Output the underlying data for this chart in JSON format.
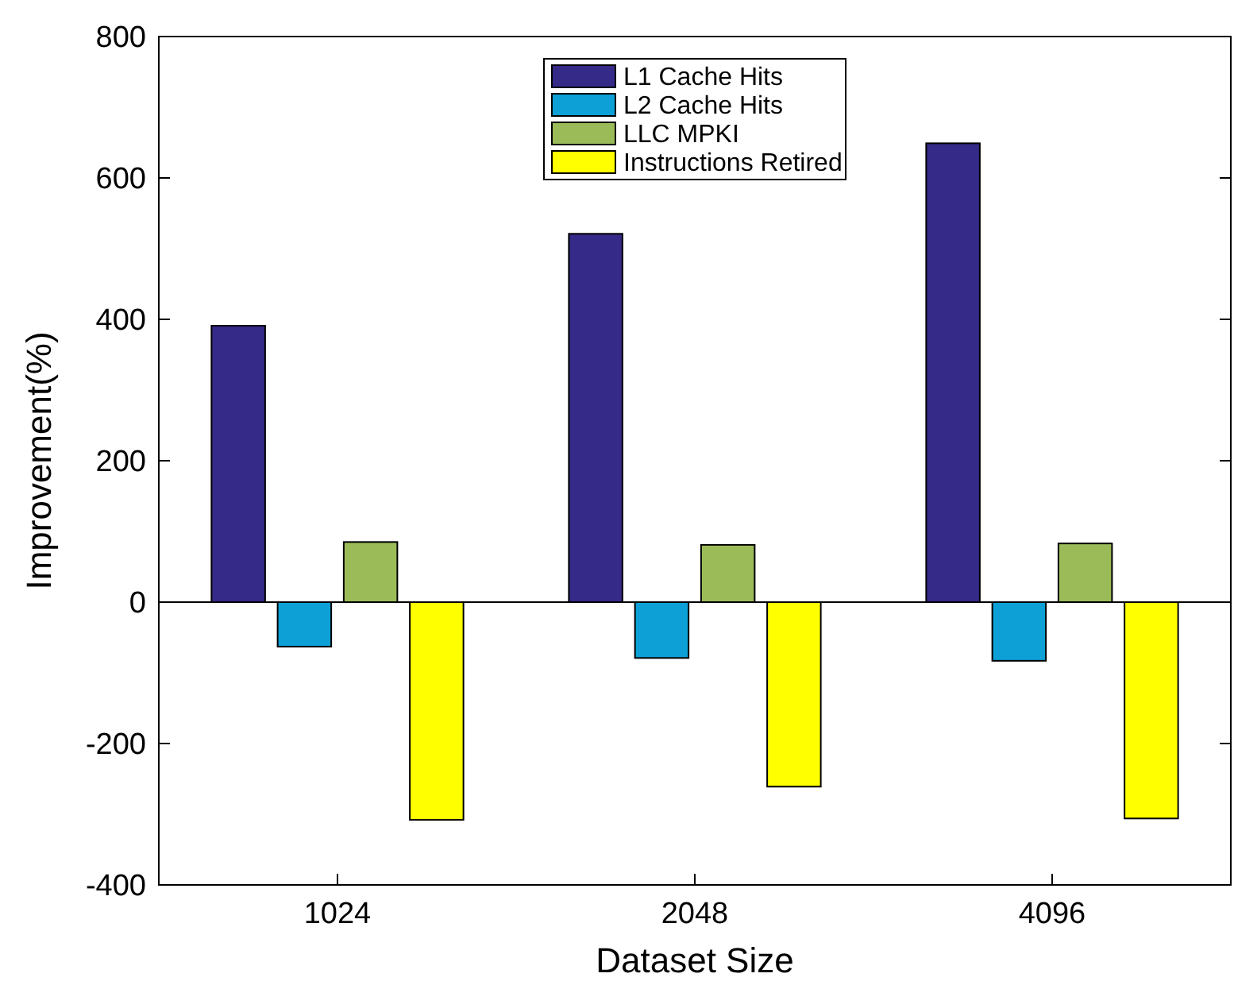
{
  "chart_data": {
    "type": "bar",
    "xlabel": "Dataset Size",
    "ylabel": "Improvement(%)",
    "categories": [
      "1024",
      "2048",
      "4096"
    ],
    "series": [
      {
        "name": "L1 Cache Hits",
        "color": "#352a87",
        "values": [
          391,
          521,
          649
        ]
      },
      {
        "name": "L2 Cache Hits",
        "color": "#0ca0d6",
        "values": [
          -63,
          -79,
          -83
        ]
      },
      {
        "name": "LLC MPKI",
        "color": "#9bbb59",
        "values": [
          85,
          81,
          83
        ]
      },
      {
        "name": "Instructions Retired",
        "color": "#ffff00",
        "values": [
          -308,
          -261,
          -306
        ]
      }
    ],
    "ylim": [
      -400,
      800
    ],
    "yticks": [
      -400,
      -200,
      0,
      200,
      400,
      600,
      800
    ],
    "ref_lines": [
      {
        "axis": "y",
        "value": 0
      }
    ],
    "legend": "top",
    "grid": false
  }
}
